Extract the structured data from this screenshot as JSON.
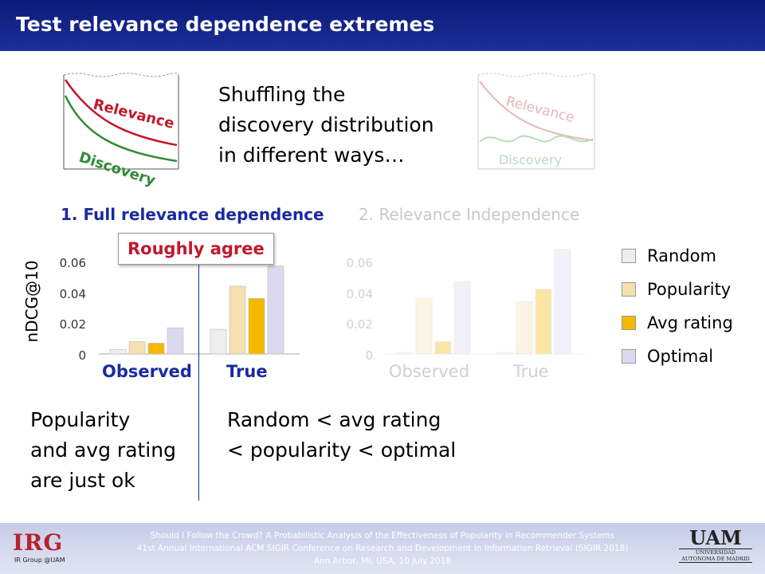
{
  "header": {
    "title": "Test relevance dependence extremes"
  },
  "intro_text": [
    "Shuffling the",
    "discovery distribution",
    "in different ways…"
  ],
  "diagrams": {
    "left": {
      "relevance_label": "Relevance",
      "discovery_label": "Discovery"
    },
    "right": {
      "relevance_label": "Relevance",
      "discovery_label": "Discovery"
    }
  },
  "sections": {
    "full": "1.  Full relevance dependence",
    "indep": "2.  Relevance Independence"
  },
  "badge": "Roughly agree",
  "colors": {
    "title_bg": "#0c1a78",
    "accent_blue": "#1a2aa0",
    "accent_red": "#c2182b",
    "random": "#eeeeee",
    "popularity": "#f6dfb0",
    "avg_rating": "#f4b800",
    "optimal": "#dcd8ef"
  },
  "chart_data": [
    {
      "type": "bar",
      "title": "1.  Full relevance dependence",
      "ylabel": "nDCG@10",
      "ylim": [
        0,
        0.06
      ],
      "yticks": [
        "0",
        "0.02",
        "0.04",
        "0.06"
      ],
      "categories": [
        "Observed",
        "True"
      ],
      "series": [
        {
          "name": "Random",
          "values": [
            0.003,
            0.016
          ]
        },
        {
          "name": "Popularity",
          "values": [
            0.008,
            0.044
          ]
        },
        {
          "name": "Avg rating",
          "values": [
            0.007,
            0.036
          ]
        },
        {
          "name": "Optimal",
          "values": [
            0.017,
            0.057
          ]
        }
      ]
    },
    {
      "type": "bar",
      "title": "2.  Relevance Independence",
      "ylim": [
        0,
        0.06
      ],
      "yticks": [
        "0",
        "0.02",
        "0.04",
        "0.06"
      ],
      "categories": [
        "Observed",
        "True"
      ],
      "series": [
        {
          "name": "Random",
          "values": [
            0.001,
            0.001
          ]
        },
        {
          "name": "Popularity",
          "values": [
            0.036,
            0.034
          ]
        },
        {
          "name": "Avg rating",
          "values": [
            0.008,
            0.042
          ]
        },
        {
          "name": "Optimal",
          "values": [
            0.047,
            0.068
          ]
        }
      ]
    }
  ],
  "legend": [
    "Random",
    "Popularity",
    "Avg rating",
    "Optimal"
  ],
  "conclusions": {
    "left": [
      "Popularity",
      "and avg rating",
      "are just ok"
    ],
    "right": [
      "Random < avg rating",
      "< popularity < optimal"
    ]
  },
  "footer": {
    "line1": "Should I Follow the Crowd? A Probabilistic Analysis of the Effectiveness of Popularity in Recommender Systems",
    "line2": "41st Annual International ACM SIGIR Conference on Research and Development in Information Retrieval (SIGIR 2018)",
    "line3": "Ann Arbor, MI, USA, 10 July 2018",
    "logo_left": "IRG",
    "logo_left_sub": "IR Group @UAM",
    "logo_right": "UAM",
    "logo_right_sub": "UNIVERSIDAD AUTONOMA DE MADRID"
  }
}
